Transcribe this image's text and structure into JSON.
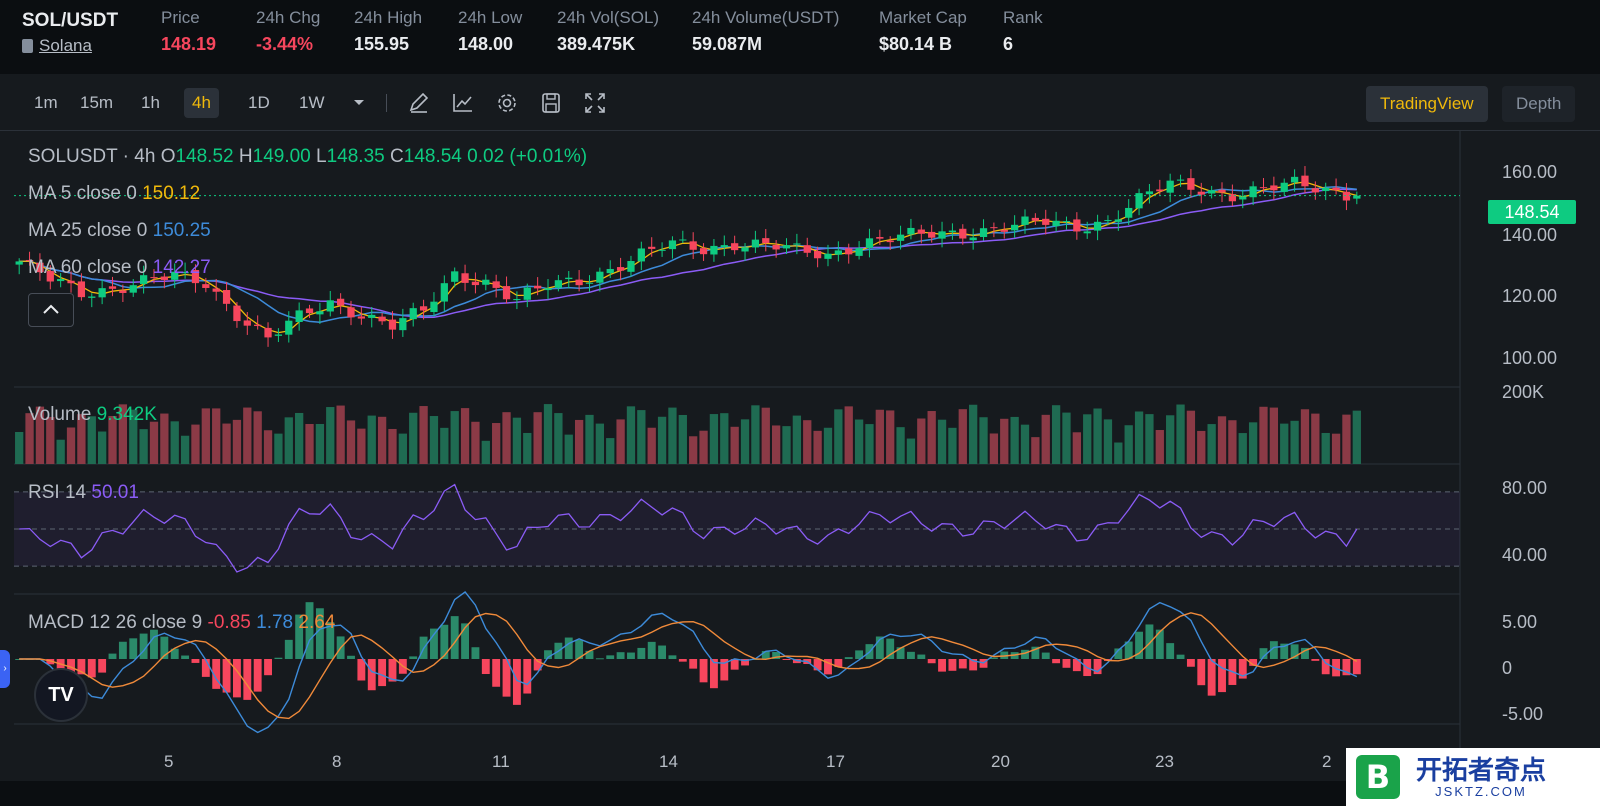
{
  "header": {
    "pair": "SOL/USDT",
    "asset_link": "Solana",
    "stats": [
      {
        "label": "Price",
        "value": "148.19",
        "negative": true
      },
      {
        "label": "24h Chg",
        "value": "-3.44%",
        "negative": true
      },
      {
        "label": "24h High",
        "value": "155.95"
      },
      {
        "label": "24h Low",
        "value": "148.00"
      },
      {
        "label": "24h Vol(SOL)",
        "value": "389.475K"
      },
      {
        "label": "24h Volume(USDT)",
        "value": "59.087M"
      },
      {
        "label": "Market Cap",
        "value": "$80.14 B"
      },
      {
        "label": "Rank",
        "value": "6"
      }
    ]
  },
  "toolbar": {
    "intervals": [
      "1m",
      "15m",
      "1h",
      "4h",
      "1D",
      "1W"
    ],
    "active_interval": "4h",
    "tools": [
      "dropdown-chevron-icon",
      "draw-pencil-icon",
      "indicator-chart-icon",
      "settings-gear-icon",
      "save-floppy-icon",
      "fullscreen-icon"
    ],
    "view_tradingview": "TradingView",
    "view_depth": "Depth"
  },
  "legend": {
    "symbol": "SOLUSDT · 4h",
    "o_label": "O",
    "o": "148.52",
    "h_label": "H",
    "h": "149.00",
    "l_label": "L",
    "l": "148.35",
    "c_label": "C",
    "c": "148.54",
    "chg": "0.02 (+0.01%)",
    "ma5_label": "MA 5 close 0",
    "ma5": "150.12",
    "ma25_label": "MA 25 close 0",
    "ma25": "150.25",
    "ma60_label": "MA 60 close 0",
    "ma60": "142.27",
    "volume_label": "Volume",
    "volume": "9.342K",
    "rsi_label": "RSI 14",
    "rsi": "50.01",
    "macd_label": "MACD 12 26 close 9",
    "macd_hist": "-0.85",
    "macd_line": "1.78",
    "macd_signal": "2.64"
  },
  "axes": {
    "price_ticks": [
      "160.00",
      "140.00",
      "120.00",
      "100.00"
    ],
    "volume_tick": "200K",
    "rsi_ticks": [
      "80.00",
      "40.00"
    ],
    "macd_ticks": [
      "5.00",
      "0",
      "-5.00"
    ],
    "x_ticks": [
      "5",
      "8",
      "11",
      "14",
      "17",
      "20",
      "23",
      "2"
    ],
    "last_price": "148.54"
  },
  "colors": {
    "up": "#0ecb81",
    "down": "#f6465d",
    "ma5": "#f0b90b",
    "ma25": "#3d8bd9",
    "ma60": "#8b5cf6",
    "rsi": "#8b5cf6",
    "accent": "#f0b90b"
  },
  "watermark": {
    "logo": "B",
    "title": "开拓者奇点",
    "sub": "JSKTZ.COM"
  },
  "chart_data": {
    "type": "candlestick",
    "interval": "4h",
    "x_ticks": [
      "5",
      "8",
      "11",
      "14",
      "17",
      "20",
      "23",
      "2"
    ],
    "price_range": [
      90,
      165
    ],
    "close_samples": [
      128,
      122,
      118,
      120,
      122,
      123,
      121,
      112,
      104,
      110,
      115,
      112,
      108,
      112,
      124,
      122,
      116,
      120,
      122,
      126,
      130,
      133,
      132,
      134,
      133,
      131,
      130,
      134,
      135,
      136,
      137,
      138,
      139,
      140,
      139,
      141,
      147,
      152,
      151,
      149,
      150,
      152,
      151,
      148.54
    ],
    "ma5_last": 150.12,
    "ma25_last": 150.25,
    "ma60_last": 142.27,
    "rsi_last": 50.01,
    "rsi_levels": [
      70,
      50,
      30
    ],
    "macd": {
      "hist": -0.85,
      "macd": 1.78,
      "signal": 2.64
    }
  }
}
